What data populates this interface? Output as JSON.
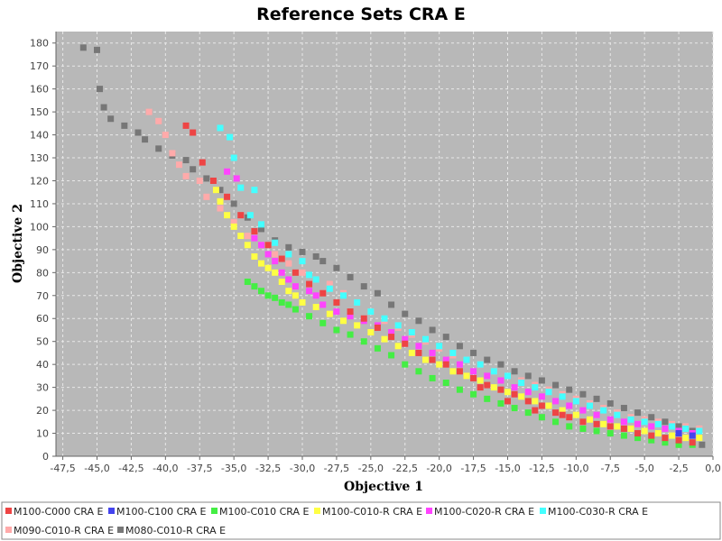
{
  "chart_data": {
    "type": "scatter",
    "title": "Reference Sets CRA E",
    "xlabel": "Objective 1",
    "ylabel": "Objective 2",
    "xlim": [
      -48,
      0
    ],
    "ylim": [
      0,
      185
    ],
    "x_ticks": [
      "-47,5",
      "-45,0",
      "-42,5",
      "-40,0",
      "-37,5",
      "-35,0",
      "-32,5",
      "-30,0",
      "-27,5",
      "-25,0",
      "-22,5",
      "-20,0",
      "-17,5",
      "-15,0",
      "-12,5",
      "-10,0",
      "-7,5",
      "-5,0",
      "-2,5",
      "0,0"
    ],
    "x_tick_values": [
      -47.5,
      -45,
      -42.5,
      -40,
      -37.5,
      -35,
      -32.5,
      -30,
      -27.5,
      -25,
      -22.5,
      -20,
      -17.5,
      -15,
      -12.5,
      -10,
      -7.5,
      -5,
      -2.5,
      0
    ],
    "y_ticks": [
      "0",
      "10",
      "20",
      "30",
      "40",
      "50",
      "60",
      "70",
      "80",
      "90",
      "100",
      "110",
      "120",
      "130",
      "140",
      "150",
      "160",
      "170",
      "180"
    ],
    "y_tick_values": [
      0,
      10,
      20,
      30,
      40,
      50,
      60,
      70,
      80,
      90,
      100,
      110,
      120,
      130,
      140,
      150,
      160,
      170,
      180
    ],
    "grid": true,
    "background": "#b8b8b8",
    "legend_position": "bottom",
    "series": [
      {
        "name": "M100-C000 CRA E",
        "color": "#ee4444",
        "points": [
          [
            -38.5,
            144
          ],
          [
            -38,
            141
          ],
          [
            -37.3,
            128
          ],
          [
            -36.5,
            120
          ],
          [
            -35.5,
            113
          ],
          [
            -34.5,
            105
          ],
          [
            -33.5,
            98
          ],
          [
            -32.5,
            92
          ],
          [
            -31.5,
            86
          ],
          [
            -30.5,
            80
          ],
          [
            -29.5,
            75
          ],
          [
            -28.5,
            71
          ],
          [
            -27.5,
            67
          ],
          [
            -26.5,
            63
          ],
          [
            -25.5,
            60
          ],
          [
            -24.5,
            56
          ],
          [
            -23.5,
            52
          ],
          [
            -22.5,
            49
          ],
          [
            -21.5,
            45
          ],
          [
            -20.5,
            42
          ],
          [
            -19.5,
            40
          ],
          [
            -18.5,
            37
          ],
          [
            -17.5,
            34
          ],
          [
            -16.5,
            31
          ],
          [
            -15.5,
            29
          ],
          [
            -14.5,
            27
          ],
          [
            -13.5,
            24
          ],
          [
            -12.5,
            22
          ],
          [
            -11.5,
            19
          ],
          [
            -10.5,
            17
          ],
          [
            -9.5,
            15
          ],
          [
            -8.5,
            14
          ],
          [
            -7.5,
            13
          ],
          [
            -6.5,
            12
          ],
          [
            -5.5,
            10
          ],
          [
            -4.5,
            9
          ],
          [
            -3.5,
            8
          ],
          [
            -2.5,
            7
          ],
          [
            -1.5,
            6
          ],
          [
            -17,
            30
          ],
          [
            -15,
            24
          ],
          [
            -13,
            20
          ],
          [
            -11,
            18
          ]
        ]
      },
      {
        "name": "M100-C100 CRA E",
        "color": "#4444ee",
        "points": [
          [
            -2.5,
            10
          ],
          [
            -1.5,
            9
          ]
        ]
      },
      {
        "name": "M100-C010 CRA E",
        "color": "#44ee44",
        "points": [
          [
            -34,
            76
          ],
          [
            -33.5,
            74
          ],
          [
            -33,
            72
          ],
          [
            -32.5,
            70
          ],
          [
            -32,
            69
          ],
          [
            -31.5,
            67
          ],
          [
            -31,
            66
          ],
          [
            -30.5,
            64
          ],
          [
            -29.5,
            61
          ],
          [
            -28.5,
            58
          ],
          [
            -27.5,
            55
          ],
          [
            -26.5,
            53
          ],
          [
            -25.5,
            50
          ],
          [
            -24.5,
            47
          ],
          [
            -23.5,
            44
          ],
          [
            -22.5,
            40
          ],
          [
            -21.5,
            37
          ],
          [
            -20.5,
            34
          ],
          [
            -19.5,
            32
          ],
          [
            -18.5,
            29
          ],
          [
            -17.5,
            27
          ],
          [
            -16.5,
            25
          ],
          [
            -15.5,
            23
          ],
          [
            -14.5,
            21
          ],
          [
            -13.5,
            19
          ],
          [
            -12.5,
            17
          ],
          [
            -11.5,
            15
          ],
          [
            -10.5,
            13
          ],
          [
            -9.5,
            12
          ],
          [
            -8.5,
            11
          ],
          [
            -7.5,
            10
          ],
          [
            -6.5,
            9
          ],
          [
            -5.5,
            8
          ],
          [
            -4.5,
            7
          ],
          [
            -3.5,
            6
          ],
          [
            -2.5,
            5
          ],
          [
            -1.5,
            5
          ]
        ]
      },
      {
        "name": "M100-C010-R CRA E",
        "color": "#ffff44",
        "points": [
          [
            -36.3,
            116
          ],
          [
            -36,
            111
          ],
          [
            -35.5,
            105
          ],
          [
            -35,
            100
          ],
          [
            -34.5,
            96
          ],
          [
            -34,
            92
          ],
          [
            -33.5,
            87
          ],
          [
            -33,
            84
          ],
          [
            -32.5,
            82
          ],
          [
            -32,
            80
          ],
          [
            -31.5,
            76
          ],
          [
            -31,
            72
          ],
          [
            -30.5,
            70
          ],
          [
            -30,
            67
          ],
          [
            -29,
            65
          ],
          [
            -28,
            62
          ],
          [
            -27,
            59
          ],
          [
            -26,
            57
          ],
          [
            -25,
            54
          ],
          [
            -24,
            51
          ],
          [
            -23,
            48
          ],
          [
            -22,
            45
          ],
          [
            -21,
            42
          ],
          [
            -20,
            40
          ],
          [
            -19,
            37
          ],
          [
            -18,
            35
          ],
          [
            -17,
            33
          ],
          [
            -16,
            30
          ],
          [
            -15,
            28
          ],
          [
            -14,
            26
          ],
          [
            -13,
            24
          ],
          [
            -12,
            22
          ],
          [
            -11,
            20
          ],
          [
            -10,
            18
          ],
          [
            -9,
            16
          ],
          [
            -8,
            14
          ],
          [
            -7,
            13
          ],
          [
            -6,
            12
          ],
          [
            -5,
            11
          ],
          [
            -4,
            10
          ],
          [
            -3,
            9
          ],
          [
            -2,
            8
          ],
          [
            -1,
            8
          ]
        ]
      },
      {
        "name": "M100-C020-R CRA E",
        "color": "#ff44ff",
        "points": [
          [
            -35.5,
            124
          ],
          [
            -34.8,
            121
          ],
          [
            -33.5,
            95
          ],
          [
            -33,
            92
          ],
          [
            -32.5,
            88
          ],
          [
            -32,
            85
          ],
          [
            -31.5,
            80
          ],
          [
            -31,
            77
          ],
          [
            -30.5,
            74
          ],
          [
            -29.5,
            72
          ],
          [
            -29,
            70
          ],
          [
            -28.5,
            66
          ],
          [
            -27.5,
            63
          ],
          [
            -26.5,
            61
          ],
          [
            -25.5,
            59
          ],
          [
            -24.5,
            57
          ],
          [
            -23.5,
            54
          ],
          [
            -22.5,
            51
          ],
          [
            -21.5,
            48
          ],
          [
            -20.5,
            45
          ],
          [
            -19.5,
            42
          ],
          [
            -18.5,
            40
          ],
          [
            -17.5,
            37
          ],
          [
            -16.5,
            35
          ],
          [
            -15.5,
            33
          ],
          [
            -14.5,
            30
          ],
          [
            -13.5,
            28
          ],
          [
            -12.5,
            26
          ],
          [
            -11.5,
            24
          ],
          [
            -10.5,
            22
          ],
          [
            -9.5,
            20
          ],
          [
            -8.5,
            18
          ],
          [
            -7.5,
            16
          ],
          [
            -6.5,
            15
          ],
          [
            -5.5,
            14
          ],
          [
            -4.5,
            13
          ],
          [
            -3.5,
            12
          ],
          [
            -2.5,
            11
          ],
          [
            -1.5,
            10
          ]
        ]
      },
      {
        "name": "M100-C030-R CRA E",
        "color": "#44ffff",
        "points": [
          [
            -36,
            143
          ],
          [
            -35.3,
            139
          ],
          [
            -35,
            130
          ],
          [
            -34.5,
            117
          ],
          [
            -33.5,
            116
          ],
          [
            -33.8,
            105
          ],
          [
            -33,
            101
          ],
          [
            -32,
            93
          ],
          [
            -31,
            88
          ],
          [
            -30,
            85
          ],
          [
            -29.5,
            79
          ],
          [
            -29,
            77
          ],
          [
            -28,
            73
          ],
          [
            -27,
            70
          ],
          [
            -26,
            67
          ],
          [
            -25,
            63
          ],
          [
            -24,
            60
          ],
          [
            -23,
            57
          ],
          [
            -22,
            54
          ],
          [
            -21,
            51
          ],
          [
            -20,
            48
          ],
          [
            -19,
            45
          ],
          [
            -18,
            42
          ],
          [
            -17,
            40
          ],
          [
            -16,
            37
          ],
          [
            -15,
            35
          ],
          [
            -14,
            32
          ],
          [
            -13,
            30
          ],
          [
            -12,
            28
          ],
          [
            -11,
            26
          ],
          [
            -10,
            24
          ],
          [
            -9,
            22
          ],
          [
            -8,
            20
          ],
          [
            -7,
            18
          ],
          [
            -6,
            16
          ],
          [
            -5,
            15
          ],
          [
            -4,
            14
          ],
          [
            -3,
            13
          ],
          [
            -2,
            12
          ],
          [
            -1,
            11
          ]
        ]
      },
      {
        "name": "M090-C010-R CRA E",
        "color": "#ffaaaa",
        "points": [
          [
            -41.2,
            150
          ],
          [
            -40.5,
            146
          ],
          [
            -40,
            140
          ],
          [
            -39.5,
            132
          ],
          [
            -39,
            127
          ],
          [
            -38.5,
            122
          ],
          [
            -37.5,
            120
          ],
          [
            -37,
            113
          ],
          [
            -36,
            108
          ],
          [
            -35,
            102
          ],
          [
            -34,
            96
          ],
          [
            -33,
            92
          ],
          [
            -32,
            88
          ],
          [
            -31,
            84
          ],
          [
            -30,
            80
          ],
          [
            -29,
            77
          ],
          [
            -28,
            75
          ],
          [
            -27,
            71
          ],
          [
            -26,
            67
          ],
          [
            -25,
            63
          ],
          [
            -24,
            59
          ],
          [
            -23,
            56
          ],
          [
            -22,
            53
          ],
          [
            -21,
            50
          ],
          [
            -20,
            47
          ],
          [
            -19,
            44
          ],
          [
            -18,
            42
          ],
          [
            -17,
            40
          ],
          [
            -16,
            37
          ],
          [
            -15,
            35
          ],
          [
            -14,
            33
          ],
          [
            -13,
            31
          ],
          [
            -12,
            29
          ],
          [
            -11,
            27
          ],
          [
            -10,
            25
          ],
          [
            -9,
            23
          ],
          [
            -8,
            21
          ],
          [
            -7,
            19
          ],
          [
            -6,
            17
          ],
          [
            -5,
            16
          ],
          [
            -4,
            15
          ],
          [
            -3,
            14
          ],
          [
            -2,
            13
          ],
          [
            -1,
            12
          ]
        ]
      },
      {
        "name": "M080-C010-R CRA E",
        "color": "#777777",
        "points": [
          [
            -46,
            178
          ],
          [
            -45,
            177
          ],
          [
            -44.8,
            160
          ],
          [
            -44.5,
            152
          ],
          [
            -44,
            147
          ],
          [
            -43,
            144
          ],
          [
            -42,
            141
          ],
          [
            -41.5,
            138
          ],
          [
            -40.5,
            134
          ],
          [
            -39.5,
            131
          ],
          [
            -38.5,
            129
          ],
          [
            -38,
            125
          ],
          [
            -37,
            121
          ],
          [
            -36,
            116
          ],
          [
            -35,
            110
          ],
          [
            -34,
            104
          ],
          [
            -33,
            99
          ],
          [
            -32,
            94
          ],
          [
            -31,
            91
          ],
          [
            -30,
            89
          ],
          [
            -29,
            87
          ],
          [
            -28.5,
            85
          ],
          [
            -27.5,
            82
          ],
          [
            -26.5,
            78
          ],
          [
            -25.5,
            74
          ],
          [
            -24.5,
            71
          ],
          [
            -23.5,
            66
          ],
          [
            -22.5,
            62
          ],
          [
            -21.5,
            59
          ],
          [
            -20.5,
            55
          ],
          [
            -19.5,
            52
          ],
          [
            -18.5,
            48
          ],
          [
            -17.5,
            45
          ],
          [
            -16.5,
            42
          ],
          [
            -15.5,
            40
          ],
          [
            -14.5,
            37
          ],
          [
            -13.5,
            35
          ],
          [
            -12.5,
            33
          ],
          [
            -11.5,
            31
          ],
          [
            -10.5,
            29
          ],
          [
            -9.5,
            27
          ],
          [
            -8.5,
            25
          ],
          [
            -7.5,
            23
          ],
          [
            -6.5,
            21
          ],
          [
            -5.5,
            19
          ],
          [
            -4.5,
            17
          ],
          [
            -3.5,
            15
          ],
          [
            -2.5,
            13
          ],
          [
            -1.5,
            11
          ],
          [
            -0.8,
            5
          ]
        ]
      }
    ]
  }
}
